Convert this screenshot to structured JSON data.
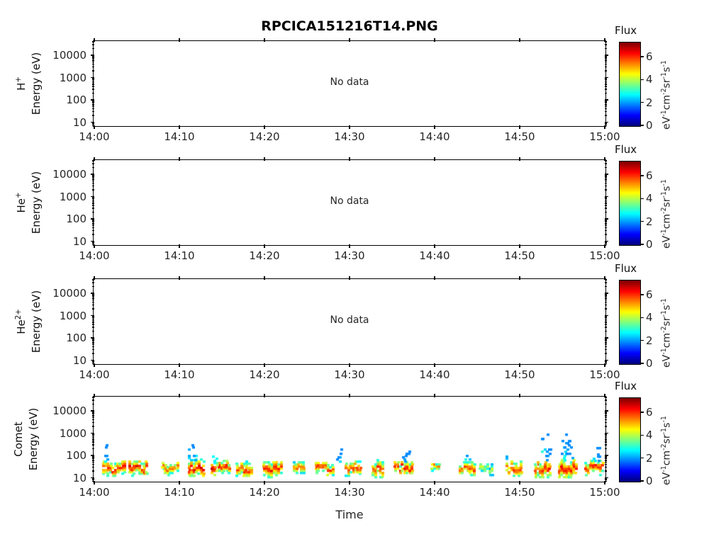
{
  "title": "RPCICA151216T14.PNG",
  "xlabel": "Time",
  "x_tick_labels": [
    "14:00",
    "14:10",
    "14:20",
    "14:30",
    "14:40",
    "14:50",
    "15:00"
  ],
  "y_tick_labels": [
    "10",
    "100",
    "1000",
    "10000"
  ],
  "panels": [
    {
      "id": "h-plus",
      "species_base": "H",
      "species_sup": "+",
      "ylabel": "Energy (eV)",
      "status": "No data"
    },
    {
      "id": "he-plus",
      "species_base": "He",
      "species_sup": "+",
      "ylabel": "Energy (eV)",
      "status": "No data"
    },
    {
      "id": "he2-plus",
      "species_base": "He",
      "species_sup": "2+",
      "ylabel": "Energy (eV)",
      "status": "No data"
    },
    {
      "id": "comet",
      "species_base": "Comet",
      "species_sup": "",
      "ylabel": "Energy (eV)",
      "status": ""
    }
  ],
  "colorbar": {
    "title": "Flux",
    "tick_labels": [
      "0",
      "2",
      "4",
      "6"
    ],
    "flux_min": 0,
    "flux_max": 7.3,
    "colormap": "jet",
    "unit_parts": [
      [
        "eV",
        "-1"
      ],
      [
        "cm",
        "-2"
      ],
      [
        "sr",
        "-1"
      ],
      [
        "s",
        "-1"
      ]
    ]
  },
  "chart_data": {
    "type": "heatmap",
    "title": "RPCICA151216T14.PNG",
    "xlabel": "Time",
    "x_ticks": [
      "14:00",
      "14:10",
      "14:20",
      "14:30",
      "14:40",
      "14:50",
      "15:00"
    ],
    "x_range_minutes": [
      0,
      60
    ],
    "ylabel": "Energy (eV)",
    "y_scale": "log",
    "y_ticks_ev": [
      10,
      100,
      1000,
      10000
    ],
    "y_range_ev": [
      6.3,
      40000
    ],
    "colorbar_label": "Flux",
    "colorbar_unit": "eV^-1 cm^-2 sr^-1 s^-1",
    "colorbar_range": [
      0,
      7.3
    ],
    "colormap": "jet",
    "panels": [
      {
        "species": "H+",
        "no_data": true,
        "events": []
      },
      {
        "species": "He+",
        "no_data": true,
        "events": []
      },
      {
        "species": "He2+",
        "no_data": true,
        "events": []
      },
      {
        "species": "Comet",
        "no_data": false,
        "events": [
          {
            "t0": 1.1,
            "t1": 3.7,
            "e0": 13,
            "e1": 50,
            "flux": 6.8,
            "plumes": [
              {
                "t": 1.4,
                "top": 300,
                "flux": 2.2
              }
            ]
          },
          {
            "t0": 4.2,
            "t1": 6.4,
            "e0": 13,
            "e1": 55,
            "flux": 6.8,
            "plumes": []
          },
          {
            "t0": 8.1,
            "t1": 9.8,
            "e0": 14,
            "e1": 50,
            "flux": 6.4,
            "plumes": []
          },
          {
            "t0": 11.2,
            "t1": 12.9,
            "e0": 13,
            "e1": 60,
            "flux": 7.0,
            "plumes": [
              {
                "t": 11.4,
                "top": 420,
                "flux": 2.4
              },
              {
                "t": 11.9,
                "top": 150,
                "flux": 3.0
              }
            ]
          },
          {
            "t0": 13.9,
            "t1": 16.1,
            "e0": 14,
            "e1": 55,
            "flux": 7.0,
            "plumes": [
              {
                "t": 14.1,
                "top": 130,
                "flux": 3.0
              }
            ]
          },
          {
            "t0": 16.8,
            "t1": 18.6,
            "e0": 13,
            "e1": 50,
            "flux": 6.4,
            "plumes": []
          },
          {
            "t0": 20.0,
            "t1": 22.2,
            "e0": 12,
            "e1": 50,
            "flux": 6.8,
            "plumes": []
          },
          {
            "t0": 23.5,
            "t1": 24.9,
            "e0": 15,
            "e1": 45,
            "flux": 6.2,
            "plumes": []
          },
          {
            "t0": 26.1,
            "t1": 28.1,
            "e0": 14,
            "e1": 50,
            "flux": 6.5,
            "plumes": [
              {
                "t": 28.8,
                "top": 250,
                "flux": 2.2
              }
            ]
          },
          {
            "t0": 29.6,
            "t1": 31.3,
            "e0": 13,
            "e1": 50,
            "flux": 6.5,
            "plumes": []
          },
          {
            "t0": 32.8,
            "t1": 34.0,
            "e0": 12,
            "e1": 55,
            "flux": 6.5,
            "plumes": []
          },
          {
            "t0": 35.4,
            "t1": 37.5,
            "e0": 15,
            "e1": 50,
            "flux": 6.8,
            "plumes": [
              {
                "t": 36.6,
                "top": 200,
                "flux": 2.0
              }
            ]
          },
          {
            "t0": 39.7,
            "t1": 40.8,
            "e0": 18,
            "e1": 40,
            "flux": 6.0,
            "plumes": []
          },
          {
            "t0": 43.0,
            "t1": 44.8,
            "e0": 15,
            "e1": 50,
            "flux": 6.5,
            "plumes": [
              {
                "t": 43.9,
                "top": 140,
                "flux": 3.0
              }
            ]
          },
          {
            "t0": 45.4,
            "t1": 47.0,
            "e0": 15,
            "e1": 40,
            "flux": 4.8,
            "plumes": []
          },
          {
            "t0": 48.5,
            "t1": 50.3,
            "e0": 13,
            "e1": 55,
            "flux": 6.5,
            "plumes": [
              {
                "t": 48.7,
                "top": 150,
                "flux": 2.5
              }
            ]
          },
          {
            "t0": 51.9,
            "t1": 53.7,
            "e0": 12,
            "e1": 60,
            "flux": 6.8,
            "plumes": [
              {
                "t": 52.6,
                "top": 700,
                "flux": 3.2
              },
              {
                "t": 53.3,
                "top": 1500,
                "flux": 2.2
              }
            ]
          },
          {
            "t0": 54.7,
            "t1": 56.8,
            "e0": 12,
            "e1": 60,
            "flux": 6.8,
            "plumes": [
              {
                "t": 55.4,
                "top": 500,
                "flux": 3.0
              },
              {
                "t": 56.0,
                "top": 900,
                "flux": 2.2
              }
            ]
          },
          {
            "t0": 57.8,
            "t1": 59.8,
            "e0": 14,
            "e1": 55,
            "flux": 6.8,
            "plumes": [
              {
                "t": 59.0,
                "top": 300,
                "flux": 2.4
              }
            ]
          }
        ]
      }
    ]
  }
}
